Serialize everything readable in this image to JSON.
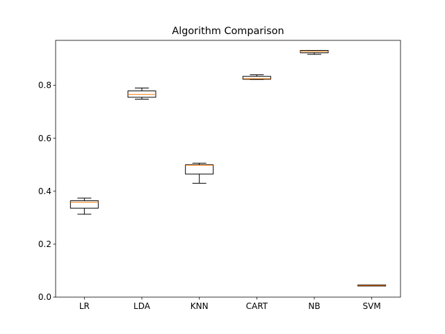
{
  "chart_data": {
    "type": "box",
    "title": "Algorithm Comparison",
    "xlabel": "",
    "ylabel": "",
    "categories": [
      "LR",
      "LDA",
      "KNN",
      "CART",
      "NB",
      "SVM"
    ],
    "ylim": [
      0.0,
      0.97
    ],
    "yticks": [
      0.0,
      0.2,
      0.4,
      0.6,
      0.8
    ],
    "ytick_labels": [
      "0.0",
      "0.2",
      "0.4",
      "0.6",
      "0.8"
    ],
    "boxes": [
      {
        "name": "LR",
        "whislo": 0.313,
        "q1": 0.336,
        "med": 0.358,
        "q3": 0.364,
        "whishi": 0.374
      },
      {
        "name": "LDA",
        "whislo": 0.748,
        "q1": 0.755,
        "med": 0.766,
        "q3": 0.779,
        "whishi": 0.79
      },
      {
        "name": "KNN",
        "whislo": 0.43,
        "q1": 0.465,
        "med": 0.498,
        "q3": 0.5,
        "whishi": 0.506
      },
      {
        "name": "CART",
        "whislo": 0.822,
        "q1": 0.823,
        "med": 0.825,
        "q3": 0.834,
        "whishi": 0.84
      },
      {
        "name": "NB",
        "whislo": 0.917,
        "q1": 0.923,
        "med": 0.928,
        "q3": 0.932,
        "whishi": 0.932
      },
      {
        "name": "SVM",
        "whislo": 0.042,
        "q1": 0.042,
        "med": 0.044,
        "q3": 0.046,
        "whishi": 0.046
      }
    ],
    "grid": false,
    "colors": {
      "box": "#000000",
      "median": "#ff7f0e"
    }
  }
}
